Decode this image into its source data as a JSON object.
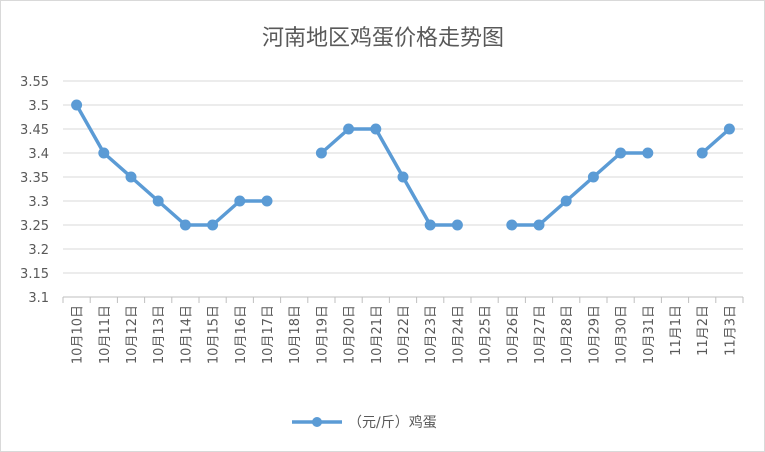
{
  "chart_data": {
    "type": "line",
    "title": "河南地区鸡蛋价格走势图",
    "categories": [
      "10月10日",
      "10月11日",
      "10月12日",
      "10月13日",
      "10月14日",
      "10月15日",
      "10月16日",
      "10月17日",
      "10月18日",
      "10月19日",
      "10月20日",
      "10月21日",
      "10月22日",
      "10月23日",
      "10月24日",
      "10月25日",
      "10月26日",
      "10月27日",
      "10月28日",
      "10月29日",
      "10月30日",
      "10月31日",
      "11月1日",
      "11月2日",
      "11月3日"
    ],
    "series": [
      {
        "name": "（元/斤）鸡蛋",
        "color": "#5b9bd5",
        "values": [
          3.5,
          3.4,
          3.35,
          3.3,
          3.25,
          3.25,
          3.3,
          3.3,
          null,
          3.4,
          3.45,
          3.45,
          3.35,
          3.25,
          3.25,
          null,
          3.25,
          3.25,
          3.3,
          3.35,
          3.4,
          3.4,
          null,
          3.4,
          3.45
        ]
      }
    ],
    "y_ticks": [
      "3.1",
      "3.15",
      "3.2",
      "3.25",
      "3.3",
      "3.35",
      "3.4",
      "3.45",
      "3.5",
      "3.55"
    ],
    "ylim": [
      3.1,
      3.55
    ],
    "grid": true,
    "legend_position": "bottom",
    "xlabel": "",
    "ylabel": ""
  }
}
